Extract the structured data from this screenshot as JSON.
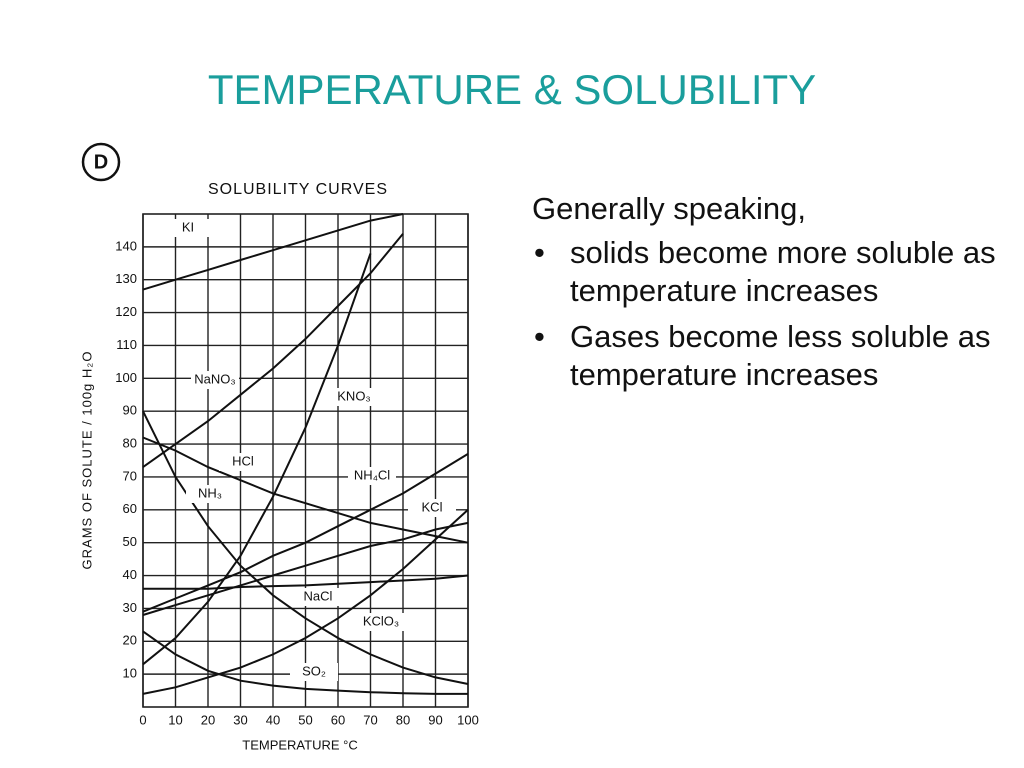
{
  "slide": {
    "title": "TEMPERATURE & SOLUBILITY",
    "intro": "Generally speaking,",
    "bullets": [
      "solids become more soluble as temperature increases",
      "Gases become less soluble as temperature increases"
    ]
  },
  "chart_data": {
    "type": "line",
    "badge": "D",
    "title": "SOLUBILITY CURVES",
    "x_label": "TEMPERATURE °C",
    "y_label": "GRAMS OF SOLUTE / 100g H₂O",
    "x": [
      0,
      10,
      20,
      30,
      40,
      50,
      60,
      70,
      80,
      90,
      100
    ],
    "xlim": [
      0,
      100
    ],
    "xticks": [
      0,
      10,
      20,
      30,
      40,
      50,
      60,
      70,
      80,
      90,
      100
    ],
    "ylim": [
      0,
      150
    ],
    "yticks": [
      10,
      20,
      30,
      40,
      50,
      60,
      70,
      80,
      90,
      100,
      110,
      120,
      130,
      140
    ],
    "grid": true,
    "series": [
      {
        "name": "KI",
        "color": "#111111",
        "values": [
          127,
          130,
          133,
          136,
          139,
          142,
          145,
          148,
          150,
          null,
          null
        ]
      },
      {
        "name": "NaNO₃",
        "color": "#111111",
        "values": [
          73,
          80,
          87,
          95,
          103,
          112,
          122,
          132,
          144,
          null,
          null
        ]
      },
      {
        "name": "KNO₃",
        "color": "#111111",
        "values": [
          13,
          21,
          32,
          46,
          64,
          85,
          110,
          138,
          null,
          null,
          null
        ]
      },
      {
        "name": "HCl",
        "color": "#111111",
        "values": [
          82,
          78,
          73,
          69,
          65,
          62,
          59,
          56,
          54,
          52,
          50
        ]
      },
      {
        "name": "NH₃",
        "color": "#111111",
        "values": [
          90,
          70,
          55,
          43,
          34,
          27,
          21,
          16,
          12,
          9,
          7
        ]
      },
      {
        "name": "NH₄Cl",
        "color": "#111111",
        "values": [
          29,
          33,
          37,
          41,
          46,
          50,
          55,
          60,
          65,
          71,
          77
        ]
      },
      {
        "name": "KCl",
        "color": "#111111",
        "values": [
          28,
          31,
          34,
          37,
          40,
          43,
          46,
          49,
          51,
          54,
          56
        ]
      },
      {
        "name": "NaCl",
        "color": "#111111",
        "values": [
          36,
          36,
          36,
          36.5,
          36.8,
          37,
          37.5,
          38,
          38.5,
          39,
          40
        ]
      },
      {
        "name": "KClO₃",
        "color": "#111111",
        "values": [
          4,
          6,
          9,
          12,
          16,
          21,
          27,
          34,
          42,
          51,
          60
        ]
      },
      {
        "name": "SO₂",
        "color": "#111111",
        "values": [
          23,
          16,
          11,
          8,
          6.5,
          5.5,
          5,
          4.5,
          4.2,
          4,
          4
        ]
      }
    ]
  }
}
